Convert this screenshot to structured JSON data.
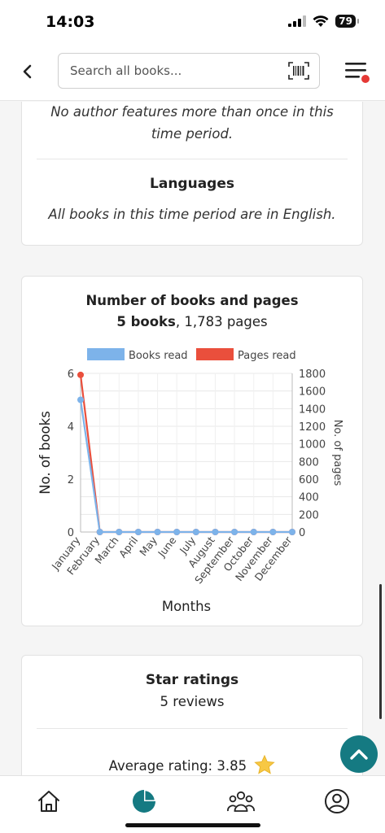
{
  "status": {
    "time": "14:03",
    "battery": "79"
  },
  "search": {
    "placeholder": "Search all books..."
  },
  "authors": {
    "text_line1": "No author features more than once in this",
    "text_line2": "time period."
  },
  "languages": {
    "title": "Languages",
    "text": "All books in this time period are in English."
  },
  "chart_card": {
    "title": "Number of books and pages",
    "books_bold": "5 books",
    "pages_rest": ", 1,783 pages"
  },
  "chart_data": {
    "type": "line",
    "x": [
      "January",
      "February",
      "March",
      "April",
      "May",
      "June",
      "July",
      "August",
      "September",
      "October",
      "November",
      "December"
    ],
    "xlabel": "Months",
    "series": [
      {
        "name": "Books read",
        "axis": "left",
        "color": "#7db3ea",
        "values": [
          5,
          0,
          0,
          0,
          0,
          0,
          0,
          0,
          0,
          0,
          0,
          0
        ]
      },
      {
        "name": "Pages read",
        "axis": "right",
        "color": "#ea4f3c",
        "values": [
          1783,
          0,
          0,
          0,
          0,
          0,
          0,
          0,
          0,
          0,
          0,
          0
        ]
      }
    ],
    "y_left": {
      "label": "No. of books",
      "range": [
        0,
        6
      ],
      "ticks": [
        0,
        2,
        4,
        6
      ]
    },
    "y_right": {
      "label": "No. of pages",
      "range": [
        0,
        1800
      ],
      "ticks": [
        0,
        200,
        400,
        600,
        800,
        1000,
        1200,
        1400,
        1600,
        1800
      ]
    },
    "grid": true,
    "legend_position": "top"
  },
  "ratings": {
    "title": "Star ratings",
    "subtitle": "5 reviews",
    "average_label": "Average rating: 3.85"
  },
  "colors": {
    "accent": "#157a82",
    "notification": "#e53935"
  }
}
